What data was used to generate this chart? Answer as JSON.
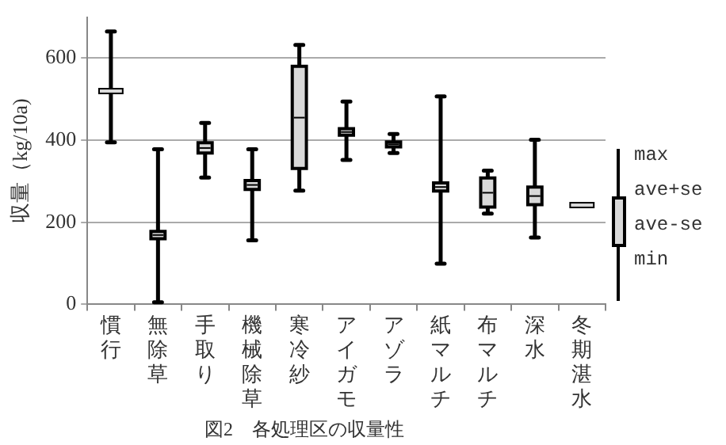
{
  "chart_data": {
    "type": "box",
    "title": "図2　各処理区の収量性",
    "ylabel": "収量（kg/10a)",
    "categories": [
      "慣行",
      "無除草",
      "手取り",
      "機械除草",
      "寒冷紗",
      "アイガモ",
      "アゾラ",
      "紙マルチ",
      "布マルチ",
      "深水",
      "冬期湛水"
    ],
    "boxes": [
      {
        "low": 395,
        "q1": 520,
        "median": 520,
        "q3": 520,
        "high": 665
      },
      {
        "low": 5,
        "q1": 160,
        "median": 169,
        "q3": 178,
        "high": 378
      },
      {
        "low": 309,
        "q1": 369,
        "median": 381,
        "q3": 394,
        "high": 442
      },
      {
        "low": 156,
        "q1": 280,
        "median": 291,
        "q3": 302,
        "high": 378
      },
      {
        "low": 277,
        "q1": 331,
        "median": 455,
        "q3": 580,
        "high": 632
      },
      {
        "low": 352,
        "q1": 412,
        "median": 420,
        "q3": 428,
        "high": 494
      },
      {
        "low": 369,
        "q1": 384,
        "median": 390,
        "q3": 396,
        "high": 415
      },
      {
        "low": 99,
        "q1": 276,
        "median": 286,
        "q3": 296,
        "high": 507
      },
      {
        "low": 221,
        "q1": 237,
        "median": 272,
        "q3": 308,
        "high": 326
      },
      {
        "low": 163,
        "q1": 243,
        "median": 264,
        "q3": 286,
        "high": 401
      },
      {
        "low": 242,
        "q1": 242,
        "median": 242,
        "q3": 242,
        "high": 242
      }
    ],
    "color": "#d9d9d9",
    "ylim": [
      0,
      700
    ],
    "yticks": [
      0,
      200,
      400,
      600
    ],
    "grid": "y",
    "legend": false,
    "annotations": [
      "max",
      "ave+se",
      "ave-se",
      "min"
    ]
  }
}
